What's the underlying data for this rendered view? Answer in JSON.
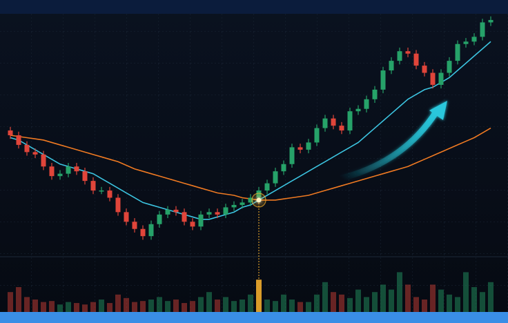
{
  "chart_data": {
    "type": "candlestick",
    "up_color": "#26a269",
    "down_color": "#e0453a",
    "ylim": [
      0,
      100
    ],
    "volume_ylim": [
      0,
      10
    ],
    "highlight_index": 30,
    "highlight_color": "#ffb62e",
    "open": [
      52,
      50,
      46,
      43,
      42,
      37,
      33,
      34,
      37,
      35,
      31,
      27,
      27,
      24,
      18,
      14,
      11,
      8,
      13,
      17,
      19,
      18,
      14,
      12,
      17,
      18,
      17,
      20,
      21,
      22,
      24,
      27,
      30,
      35,
      38,
      45,
      44,
      47,
      53,
      57,
      54,
      52,
      60,
      61,
      65,
      69,
      77,
      81,
      85,
      84,
      79,
      76,
      71,
      76,
      81,
      88,
      89,
      91,
      97
    ],
    "high": [
      53.5,
      51.5,
      47.5,
      44.5,
      43.5,
      38.5,
      35.5,
      38.5,
      38.5,
      36.5,
      32.5,
      28.5,
      28.5,
      25.5,
      19.5,
      15.5,
      12.5,
      14.5,
      18.5,
      20.5,
      20.5,
      19.5,
      15.5,
      18.5,
      19.5,
      19.5,
      21.5,
      22.5,
      23.5,
      25.5,
      28.5,
      31.5,
      36.5,
      39.5,
      46.5,
      46.5,
      48.5,
      54.5,
      58.5,
      58.5,
      55.5,
      61.5,
      62.5,
      66.5,
      70.5,
      78.5,
      82.5,
      86.5,
      86.5,
      85.5,
      80.5,
      77.5,
      77.5,
      82.5,
      89.5,
      90.5,
      92.5,
      98.5,
      99.5
    ],
    "low": [
      48.5,
      44.5,
      41.5,
      40.5,
      35.5,
      31.5,
      31.5,
      32.5,
      33.5,
      29.5,
      25.5,
      25.5,
      22.5,
      16.5,
      12.5,
      9.5,
      6.5,
      6.5,
      11.5,
      15.5,
      16.5,
      12.5,
      10.5,
      10.5,
      15.5,
      15.5,
      15.5,
      18.5,
      19.5,
      20.5,
      22.5,
      25.5,
      28.5,
      33.5,
      36.5,
      42.5,
      42.5,
      45.5,
      51.5,
      52.5,
      50.5,
      50.5,
      58.5,
      59.5,
      63.5,
      67.5,
      75.5,
      79.5,
      82.5,
      77.5,
      74.5,
      69.5,
      69.5,
      74.5,
      79.5,
      86.5,
      87.5,
      89.5,
      95.5
    ],
    "close": [
      50,
      46,
      43,
      42,
      37,
      33,
      34,
      37,
      35,
      31,
      27,
      27,
      24,
      18,
      14,
      11,
      8,
      13,
      17,
      19,
      18,
      14,
      12,
      17,
      18,
      17,
      20,
      21,
      22,
      24,
      27,
      30,
      35,
      38,
      45,
      44,
      47,
      53,
      57,
      54,
      52,
      60,
      61,
      65,
      69,
      77,
      81,
      85,
      84,
      79,
      76,
      71,
      76,
      81,
      88,
      89,
      91,
      97,
      98
    ],
    "volume": [
      4,
      5,
      3,
      2.5,
      2,
      2.2,
      1.5,
      2,
      1.8,
      1.5,
      2,
      2.5,
      1.8,
      3.5,
      2.8,
      2,
      2.2,
      2.5,
      3,
      2.2,
      2.5,
      1.8,
      2.2,
      3,
      4,
      2.5,
      3,
      2.2,
      2.5,
      3.5,
      6.5,
      2.5,
      2.2,
      3.5,
      2.5,
      2,
      2,
      3.5,
      6,
      4,
      3.5,
      2.8,
      4.5,
      3,
      4,
      5.5,
      4.5,
      8,
      5.5,
      3,
      2.5,
      5.5,
      4.5,
      3.5,
      3,
      8,
      5,
      4,
      6
    ],
    "series": [
      {
        "color": "#3cc4e0",
        "values": [
          49,
          48,
          46,
          44,
          42,
          40,
          38,
          37,
          36,
          35,
          34,
          32,
          30,
          28,
          26,
          24,
          22,
          21,
          20,
          19,
          18,
          17,
          16,
          15,
          15,
          16,
          17,
          18,
          20,
          21,
          23,
          25,
          27,
          29,
          31,
          33,
          35,
          37,
          39,
          41,
          43,
          45,
          47,
          50,
          53,
          56,
          59,
          62,
          65,
          67,
          69,
          70,
          72,
          74,
          77,
          80,
          83,
          86,
          89
        ]
      },
      {
        "color": "#f07a22",
        "values": [
          50,
          49.5,
          49,
          48.5,
          48,
          47,
          46,
          45,
          44,
          43,
          42,
          41,
          40,
          39,
          37.5,
          36,
          35,
          34,
          33,
          32,
          31,
          30,
          29,
          28,
          27,
          26,
          25.5,
          25,
          24,
          23.5,
          23,
          23,
          23,
          23.5,
          24,
          24.5,
          25,
          26,
          27,
          28,
          29,
          30,
          31,
          32,
          33,
          34,
          35,
          36,
          37,
          38.5,
          40,
          41.5,
          43,
          44.5,
          46,
          47.5,
          49,
          51,
          53
        ]
      }
    ]
  }
}
